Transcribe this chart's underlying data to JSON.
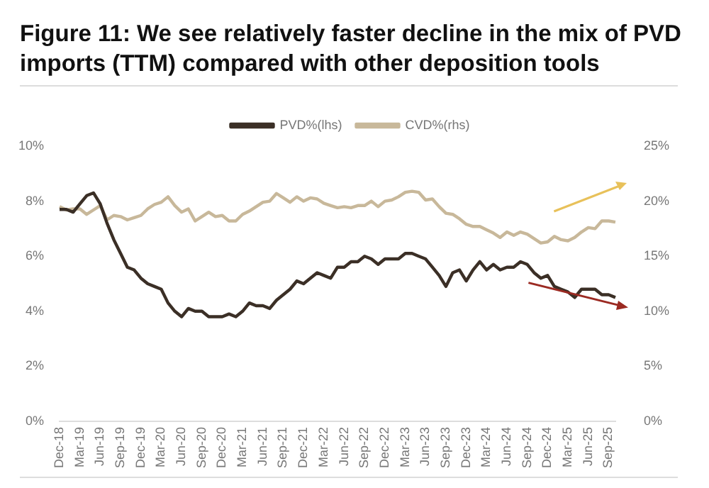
{
  "chart_data": {
    "type": "line",
    "title": "Figure 11: We see relatively faster decline in the mix of PVD imports (TTM) compared with other deposition tools",
    "categories": [
      "Dec-18",
      null,
      null,
      "Mar-19",
      null,
      null,
      "Jun-19",
      null,
      null,
      "Sep-19",
      null,
      null,
      "Dec-19",
      null,
      null,
      "Mar-20",
      null,
      null,
      "Jun-20",
      null,
      null,
      "Sep-20",
      null,
      null,
      "Dec-20",
      null,
      null,
      "Mar-21",
      null,
      null,
      "Jun-21",
      null,
      null,
      "Sep-21",
      null,
      null,
      "Dec-21",
      null,
      null,
      "Mar-22",
      null,
      null,
      "Jun-22",
      null,
      null,
      "Sep-22",
      null,
      null,
      "Dec-22",
      null,
      null,
      "Mar-23",
      null,
      null,
      "Jun-23",
      null,
      null,
      "Sep-23",
      null,
      null,
      "Dec-23",
      null,
      null,
      "Mar-24",
      null,
      null,
      "Jun-24",
      null,
      null,
      "Sep-24",
      null,
      null,
      "Dec-24",
      null,
      null,
      "Mar-25",
      null,
      null,
      "Jun-25",
      null,
      null,
      "Sep-25",
      null
    ],
    "series": [
      {
        "name": "PVD%(lhs)",
        "color": "#3b2f26",
        "axis": "y",
        "values": [
          7.7,
          7.7,
          7.6,
          7.9,
          8.2,
          8.3,
          7.9,
          7.2,
          6.6,
          6.1,
          5.6,
          5.5,
          5.2,
          5.0,
          4.9,
          4.8,
          4.3,
          4.0,
          3.8,
          4.1,
          4.0,
          4.0,
          3.8,
          3.8,
          3.8,
          3.9,
          3.8,
          4.0,
          4.3,
          4.2,
          4.2,
          4.1,
          4.4,
          4.6,
          4.8,
          5.1,
          5.0,
          5.2,
          5.4,
          5.3,
          5.2,
          5.6,
          5.6,
          5.8,
          5.8,
          6.0,
          5.9,
          5.7,
          5.9,
          5.9,
          5.9,
          6.1,
          6.1,
          6.0,
          5.9,
          5.6,
          5.3,
          4.9,
          5.4,
          5.5,
          5.1,
          5.5,
          5.8,
          5.5,
          5.7,
          5.5,
          5.6,
          5.6,
          5.8,
          5.7,
          5.4,
          5.2,
          5.3,
          4.9,
          4.8,
          4.7,
          4.5,
          4.8,
          4.8,
          4.8,
          4.6,
          4.6,
          4.5
        ]
      },
      {
        "name": "CVD%(rhs)",
        "color": "#c8b89a",
        "axis": "y2",
        "values": [
          19.5,
          19.2,
          19.3,
          19.3,
          18.8,
          19.2,
          19.6,
          18.3,
          18.7,
          18.6,
          18.3,
          18.5,
          18.7,
          19.3,
          19.7,
          19.9,
          20.4,
          19.6,
          19.0,
          19.3,
          18.2,
          18.6,
          19.0,
          18.6,
          18.7,
          18.2,
          18.2,
          18.8,
          19.1,
          19.5,
          19.9,
          20.0,
          20.7,
          20.3,
          19.9,
          20.4,
          20.0,
          20.3,
          20.2,
          19.8,
          19.6,
          19.4,
          19.5,
          19.4,
          19.6,
          19.6,
          20.0,
          19.5,
          20.0,
          20.1,
          20.4,
          20.8,
          20.9,
          20.8,
          20.1,
          20.2,
          19.5,
          18.9,
          18.8,
          18.4,
          17.9,
          17.7,
          17.7,
          17.4,
          17.1,
          16.7,
          17.2,
          16.9,
          17.2,
          17.0,
          16.6,
          16.2,
          16.3,
          16.8,
          16.5,
          16.4,
          16.7,
          17.2,
          17.6,
          17.5,
          18.2,
          18.2,
          18.1
        ]
      }
    ],
    "ylim": [
      0,
      10
    ],
    "yticks": [
      {
        "value": 0,
        "label": "0%"
      },
      {
        "value": 2,
        "label": "2%"
      },
      {
        "value": 4,
        "label": "4%"
      },
      {
        "value": 6,
        "label": "6%"
      },
      {
        "value": 8,
        "label": "8%"
      },
      {
        "value": 10,
        "label": "10%"
      }
    ],
    "y2lim": [
      0,
      25
    ],
    "y2ticks": [
      {
        "value": 0,
        "label": "0%"
      },
      {
        "value": 5,
        "label": "5%"
      },
      {
        "value": 10,
        "label": "10%"
      },
      {
        "value": 15,
        "label": "15%"
      },
      {
        "value": 20,
        "label": "20%"
      },
      {
        "value": 25,
        "label": "25%"
      }
    ],
    "legend": "top",
    "grid": false,
    "marker": "none",
    "line_style": "solid"
  }
}
